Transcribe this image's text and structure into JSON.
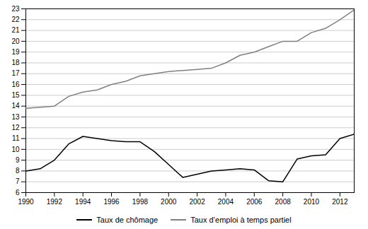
{
  "chart_data": {
    "type": "line",
    "x": [
      1990,
      1991,
      1992,
      1993,
      1994,
      1995,
      1996,
      1997,
      1998,
      1999,
      2000,
      2001,
      2002,
      2003,
      2004,
      2005,
      2006,
      2007,
      2008,
      2009,
      2010,
      2011,
      2012,
      2013
    ],
    "series": [
      {
        "name": "Taux de chômage",
        "color": "#000000",
        "values": [
          8.0,
          8.2,
          9.0,
          10.5,
          11.2,
          11.0,
          10.8,
          10.7,
          10.7,
          9.8,
          8.6,
          7.4,
          7.7,
          8.0,
          8.1,
          8.2,
          8.1,
          7.1,
          7.0,
          9.1,
          9.4,
          9.5,
          11.0,
          11.4
        ]
      },
      {
        "name": "Taux d’emploi à temps partiel",
        "color": "#808080",
        "values": [
          13.8,
          13.9,
          14.0,
          14.9,
          15.3,
          15.5,
          16.0,
          16.3,
          16.8,
          17.0,
          17.2,
          17.3,
          17.4,
          17.5,
          18.0,
          18.7,
          19.0,
          19.5,
          20.0,
          20.0,
          20.8,
          21.2,
          22.0,
          22.9
        ]
      }
    ],
    "xlim": [
      1990,
      2013
    ],
    "ylim": [
      6,
      23
    ],
    "xticks": [
      1990,
      1992,
      1994,
      1996,
      1998,
      2000,
      2002,
      2004,
      2006,
      2008,
      2010,
      2012
    ],
    "yticks": [
      6,
      7,
      8,
      9,
      10,
      11,
      12,
      13,
      14,
      15,
      16,
      17,
      18,
      19,
      20,
      21,
      22,
      23
    ],
    "grid": true,
    "legend": "bottom"
  }
}
